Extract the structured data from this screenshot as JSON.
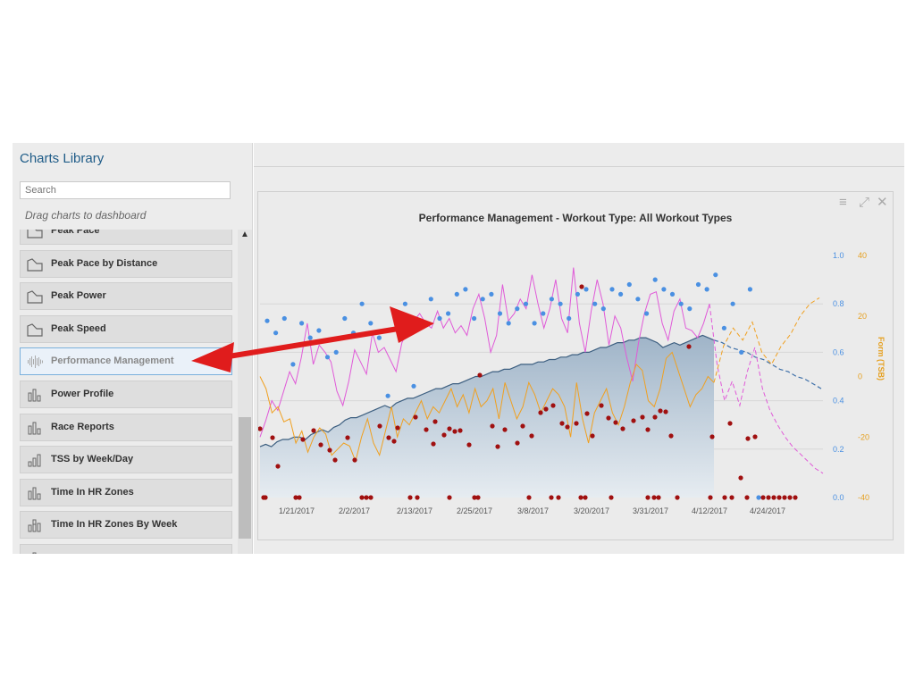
{
  "sidebar": {
    "title": "Charts Library",
    "search_placeholder": "Search",
    "hint": "Drag charts to dashboard",
    "items": [
      {
        "label": "Peak Pace",
        "icon": "area-chart-icon"
      },
      {
        "label": "Peak Pace by Distance",
        "icon": "area-chart-icon"
      },
      {
        "label": "Peak Power",
        "icon": "area-chart-icon"
      },
      {
        "label": "Peak Speed",
        "icon": "area-chart-icon"
      },
      {
        "label": "Performance Management",
        "icon": "waveform-icon",
        "selected": true
      },
      {
        "label": "Power Profile",
        "icon": "bar-chart-icon"
      },
      {
        "label": "Race Reports",
        "icon": "bar-chart-icon"
      },
      {
        "label": "TSS by Week/Day",
        "icon": "ascending-bar-chart-icon"
      },
      {
        "label": "Time In HR Zones",
        "icon": "bar-chart-icon"
      },
      {
        "label": "Time In HR Zones By Week",
        "icon": "stacked-bar-chart-icon"
      },
      {
        "label": "",
        "icon": "bar-chart-icon"
      }
    ]
  },
  "chart_widget": {
    "title": "Performance Management - Workout Type: All Workout Types",
    "menu_icon": "hamburger-menu-icon",
    "expand_icon": "expand-icon",
    "close_icon": "close-icon"
  },
  "chart_data": {
    "type": "line",
    "title": "Performance Management - Workout Type: All Workout Types",
    "x_ticks": [
      "1/21/2017",
      "2/2/2017",
      "2/13/2017",
      "2/25/2017",
      "3/8/2017",
      "3/20/2017",
      "3/31/2017",
      "4/12/2017",
      "4/24/2017"
    ],
    "y_right_ticks": [
      "1.0",
      "0.8",
      "0.6",
      "0.4",
      "0.2",
      "0.0"
    ],
    "y_right_range": [
      0,
      1
    ],
    "y_form_ticks": [
      "40",
      "20",
      "0",
      "-20",
      "-40"
    ],
    "y_form_range": [
      -40,
      40
    ],
    "y_form_label": "Form (TSB)",
    "grid": true,
    "series": [
      {
        "type": "area",
        "color": "#3d5f80",
        "values": [
          0.21,
          0.22,
          0.21,
          0.23,
          0.24,
          0.24,
          0.25,
          0.25,
          0.24,
          0.26,
          0.27,
          0.28,
          0.27,
          0.29,
          0.3,
          0.32,
          0.33,
          0.33,
          0.34,
          0.35,
          0.36,
          0.37,
          0.38,
          0.37,
          0.39,
          0.4,
          0.41,
          0.41,
          0.42,
          0.43,
          0.44,
          0.45,
          0.45,
          0.46,
          0.47,
          0.47,
          0.48,
          0.49,
          0.5,
          0.5,
          0.51,
          0.52,
          0.52,
          0.53,
          0.53,
          0.54,
          0.55,
          0.55,
          0.55,
          0.56,
          0.56,
          0.57,
          0.57,
          0.58,
          0.58,
          0.59,
          0.59,
          0.6,
          0.6,
          0.61,
          0.62,
          0.62,
          0.63,
          0.64,
          0.64,
          0.65,
          0.65,
          0.66,
          0.66,
          0.65,
          0.64,
          0.62,
          0.63,
          0.64,
          0.63,
          0.64,
          0.65,
          0.66,
          0.67,
          0.66,
          0.65
        ]
      },
      {
        "type": "line",
        "dashed_projection": true,
        "color": "#3d6fa8",
        "values": [
          0.65,
          0.64,
          0.62,
          0.61,
          0.6,
          0.58,
          0.57,
          0.55,
          0.53,
          0.52,
          0.5,
          0.49,
          0.47,
          0.45
        ]
      },
      {
        "type": "line",
        "color": "#e05ad8",
        "values": [
          0.25,
          0.32,
          0.4,
          0.36,
          0.44,
          0.52,
          0.47,
          0.58,
          0.72,
          0.55,
          0.63,
          0.6,
          0.56,
          0.44,
          0.38,
          0.48,
          0.61,
          0.56,
          0.51,
          0.68,
          0.6,
          0.62,
          0.57,
          0.52,
          0.64,
          0.69,
          0.73,
          0.76,
          0.72,
          0.7,
          0.77,
          0.7,
          0.74,
          0.68,
          0.71,
          0.67,
          0.78,
          0.84,
          0.74,
          0.6,
          0.67,
          0.88,
          0.73,
          0.76,
          0.82,
          0.78,
          0.92,
          0.8,
          0.7,
          0.78,
          0.9,
          0.74,
          0.68,
          0.95,
          0.72,
          0.6,
          0.77,
          0.9,
          0.8,
          0.63,
          0.75,
          0.7,
          0.58,
          0.48,
          0.64,
          0.76,
          0.84,
          0.85,
          0.72,
          0.65,
          0.77,
          0.82,
          0.7,
          0.69,
          0.66,
          0.72,
          0.8
        ]
      },
      {
        "type": "line",
        "dashed_projection": true,
        "color": "#e05ad8",
        "values": [
          0.8,
          0.55,
          0.4,
          0.48,
          0.38,
          0.52,
          0.62,
          0.45,
          0.36,
          0.3,
          0.25,
          0.21,
          0.18,
          0.15,
          0.12,
          0.1
        ]
      },
      {
        "type": "line",
        "color": "#f0a020",
        "values": [
          0,
          -4,
          -12,
          -10,
          -15,
          -14,
          -22,
          -18,
          -25,
          -20,
          -17,
          -19,
          -26,
          -24,
          -22,
          -23,
          -28,
          -20,
          -14,
          -22,
          -26,
          -18,
          -10,
          -20,
          -14,
          -16,
          -12,
          -8,
          -14,
          -10,
          -12,
          -8,
          -4,
          -10,
          -6,
          -12,
          -4,
          -10,
          -8,
          -4,
          -14,
          -2,
          -8,
          -14,
          -10,
          -2,
          -6,
          -12,
          -8,
          -4,
          -6,
          -10,
          -20,
          -2,
          -14,
          -22,
          -12,
          -8,
          -4,
          -12,
          -16,
          -10,
          -2,
          4,
          2,
          -8,
          -10,
          -4,
          6,
          8,
          2,
          -4,
          -10,
          -6,
          -4,
          0,
          -2
        ]
      },
      {
        "type": "line",
        "dashed_projection": true,
        "color": "#f0a020",
        "values": [
          -2,
          10,
          16,
          12,
          18,
          8,
          4,
          10,
          14,
          20,
          24,
          26
        ]
      },
      {
        "type": "scatter",
        "color": "#4a90e2",
        "name": "",
        "values": [
          0.73,
          0.68,
          0.74,
          0.55,
          0.72,
          0.66,
          0.69,
          0.58,
          0.6,
          0.74,
          0.68,
          0.8,
          0.72,
          0.66,
          0.42,
          0.7,
          0.8,
          0.46,
          0.72,
          0.82,
          0.74,
          0.76,
          0.84,
          0.86,
          0.74,
          0.82,
          0.84,
          0.76,
          0.72,
          0.78,
          0.8,
          0.72,
          0.76,
          0.82,
          0.8,
          0.74,
          0.84,
          0.86,
          0.8,
          0.78,
          0.86,
          0.84,
          0.88,
          0.82,
          0.76,
          0.9,
          0.86,
          0.84,
          0.8,
          0.78,
          0.88,
          0.86,
          0.92,
          0.7,
          0.8,
          0.6,
          0.86,
          0.0
        ]
      },
      {
        "type": "scatter",
        "color": "#a01010",
        "values": [
          0.0,
          0.0,
          0.0,
          0.0,
          0.0,
          0.0,
          0.0,
          0.0,
          0.0,
          0.0,
          0.0,
          0.0,
          0.0,
          0.0,
          0.0,
          0.0,
          0.0,
          0.0,
          0.0,
          0.0,
          0.0,
          0.0,
          0.0,
          0.0,
          0.0,
          0.0,
          0.0,
          0.0,
          0.0,
          0.0,
          0.0,
          0.0,
          0.0
        ]
      }
    ]
  }
}
